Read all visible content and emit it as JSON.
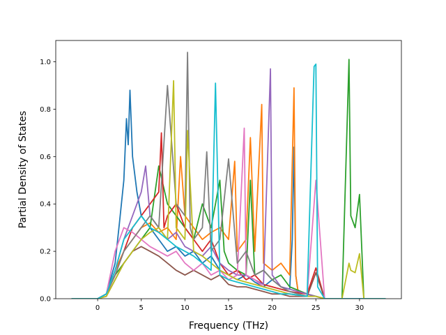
{
  "chart_data": {
    "type": "line",
    "title": "",
    "xlabel": "Frequency (THz)",
    "ylabel": "Partial Density of States",
    "xlim": [
      -4.8,
      34.8
    ],
    "ylim": [
      0,
      1.09
    ],
    "xticks": [
      0,
      5,
      10,
      15,
      20,
      25,
      30
    ],
    "yticks": [
      0.0,
      0.2,
      0.4,
      0.6,
      0.8,
      1.0
    ],
    "xtick_labels": [
      "0",
      "5",
      "10",
      "15",
      "20",
      "25",
      "30"
    ],
    "ytick_labels": [
      "0.0",
      "0.2",
      "0.4",
      "0.6",
      "0.8",
      "1.0"
    ],
    "grid": false,
    "legend": "none",
    "colors": [
      "#1f77b4",
      "#ff7f0e",
      "#2ca02c",
      "#d62728",
      "#9467bd",
      "#8c564b",
      "#e377c2",
      "#7f7f7f",
      "#bcbd22",
      "#17becf"
    ],
    "series": [
      {
        "color": "#1f77b4",
        "x": [
          -3,
          0,
          1,
          2,
          2.5,
          3,
          3.3,
          3.5,
          3.7,
          4,
          4.5,
          5,
          6,
          7,
          8,
          9,
          10,
          11,
          12,
          13,
          14,
          15,
          16,
          17,
          18,
          19,
          20,
          21,
          22,
          22.3,
          22.5,
          22.7,
          23,
          24,
          25,
          26,
          33
        ],
        "y": [
          0,
          0,
          0.02,
          0.15,
          0.32,
          0.5,
          0.76,
          0.65,
          0.88,
          0.6,
          0.45,
          0.35,
          0.3,
          0.25,
          0.2,
          0.22,
          0.18,
          0.2,
          0.15,
          0.18,
          0.12,
          0.1,
          0.08,
          0.1,
          0.07,
          0.05,
          0.08,
          0.05,
          0.04,
          0.25,
          0.64,
          0.1,
          0.02,
          0.01,
          0.01,
          0,
          0
        ]
      },
      {
        "color": "#ff7f0e",
        "x": [
          -3,
          0,
          1,
          2,
          3,
          4,
          5,
          6,
          7,
          8,
          9,
          9.5,
          10,
          11,
          12,
          13,
          14,
          15,
          15.7,
          16,
          17,
          17.5,
          18,
          18.8,
          19,
          20,
          21,
          22,
          22.5,
          22.7,
          23,
          24,
          25,
          26,
          33
        ],
        "y": [
          0,
          0,
          0.02,
          0.12,
          0.2,
          0.25,
          0.3,
          0.32,
          0.28,
          0.3,
          0.25,
          0.6,
          0.35,
          0.3,
          0.25,
          0.28,
          0.3,
          0.25,
          0.58,
          0.2,
          0.25,
          0.68,
          0.2,
          0.82,
          0.15,
          0.12,
          0.15,
          0.1,
          0.89,
          0.1,
          0.02,
          0.01,
          0.01,
          0,
          0
        ]
      },
      {
        "color": "#2ca02c",
        "x": [
          -3,
          0,
          1,
          2,
          3,
          4,
          5,
          6,
          7,
          8,
          9,
          10,
          11,
          12,
          13,
          14,
          14.5,
          15,
          16,
          17,
          17.5,
          18,
          19,
          20,
          21,
          22,
          24,
          25,
          26,
          28,
          28.8,
          29,
          29.5,
          30,
          30.5,
          33
        ],
        "y": [
          0,
          0,
          0.02,
          0.1,
          0.15,
          0.2,
          0.25,
          0.3,
          0.56,
          0.4,
          0.35,
          0.3,
          0.25,
          0.4,
          0.3,
          0.5,
          0.2,
          0.15,
          0.12,
          0.1,
          0.5,
          0.1,
          0.12,
          0.08,
          0.1,
          0.05,
          0.02,
          0.01,
          0,
          0,
          1.01,
          0.35,
          0.3,
          0.44,
          0,
          0
        ]
      },
      {
        "color": "#d62728",
        "x": [
          -3,
          0,
          1,
          2,
          3,
          4,
          5,
          6,
          7,
          7.3,
          7.6,
          8,
          9,
          10,
          11,
          12,
          13,
          14,
          15,
          16,
          17,
          18,
          19,
          20,
          21,
          22,
          24,
          25,
          26,
          33
        ],
        "y": [
          0,
          0,
          0.02,
          0.1,
          0.2,
          0.3,
          0.35,
          0.4,
          0.45,
          0.7,
          0.3,
          0.35,
          0.4,
          0.3,
          0.25,
          0.2,
          0.25,
          0.15,
          0.1,
          0.12,
          0.08,
          0.1,
          0.06,
          0.05,
          0.04,
          0.03,
          0.02,
          0.13,
          0,
          0
        ]
      },
      {
        "color": "#9467bd",
        "x": [
          -3,
          0,
          1,
          2,
          3,
          4,
          5,
          5.5,
          6,
          7,
          8,
          9,
          10,
          11,
          12,
          13,
          14,
          15,
          16,
          17,
          18,
          19,
          19.8,
          20,
          21,
          22,
          24,
          25,
          26,
          33
        ],
        "y": [
          0,
          0,
          0.02,
          0.12,
          0.25,
          0.35,
          0.45,
          0.56,
          0.35,
          0.3,
          0.25,
          0.28,
          0.22,
          0.2,
          0.18,
          0.22,
          0.15,
          0.12,
          0.1,
          0.1,
          0.08,
          0.06,
          0.97,
          0.1,
          0.05,
          0.04,
          0.02,
          0.01,
          0,
          0
        ]
      },
      {
        "color": "#8c564b",
        "x": [
          -3,
          0,
          1,
          2,
          3,
          4,
          5,
          6,
          7,
          8,
          9,
          10,
          11,
          12,
          13,
          14,
          15,
          16,
          17,
          18,
          19,
          20,
          21,
          22,
          24,
          25,
          26,
          33
        ],
        "y": [
          0,
          0,
          0.01,
          0.08,
          0.15,
          0.2,
          0.22,
          0.2,
          0.18,
          0.15,
          0.12,
          0.1,
          0.12,
          0.1,
          0.08,
          0.1,
          0.06,
          0.05,
          0.05,
          0.04,
          0.03,
          0.02,
          0.02,
          0.01,
          0.01,
          0.11,
          0,
          0
        ]
      },
      {
        "color": "#e377c2",
        "x": [
          -3,
          0,
          1,
          2,
          3,
          4,
          5,
          6,
          7,
          8,
          9,
          10,
          11,
          12,
          13,
          14,
          15,
          16,
          16.8,
          17,
          18,
          19,
          20,
          21,
          22,
          24,
          25,
          26,
          33
        ],
        "y": [
          0,
          0,
          0.02,
          0.2,
          0.3,
          0.28,
          0.25,
          0.22,
          0.2,
          0.18,
          0.2,
          0.15,
          0.12,
          0.15,
          0.1,
          0.12,
          0.08,
          0.1,
          0.72,
          0.1,
          0.08,
          0.05,
          0.04,
          0.03,
          0.02,
          0.01,
          0.5,
          0,
          0
        ]
      },
      {
        "color": "#7f7f7f",
        "x": [
          -3,
          0,
          1,
          2,
          3,
          4,
          5,
          6,
          7,
          8,
          9,
          10,
          10.3,
          10.6,
          11,
          12,
          12.5,
          13,
          14,
          15,
          16,
          17,
          18,
          19,
          20,
          21,
          22,
          24,
          25,
          26,
          33
        ],
        "y": [
          0,
          0,
          0.02,
          0.1,
          0.2,
          0.25,
          0.3,
          0.35,
          0.3,
          0.9,
          0.4,
          0.35,
          1.04,
          0.3,
          0.25,
          0.3,
          0.62,
          0.2,
          0.25,
          0.59,
          0.15,
          0.2,
          0.1,
          0.12,
          0.08,
          0.05,
          0.03,
          0.01,
          0.01,
          0,
          0
        ]
      },
      {
        "color": "#bcbd22",
        "x": [
          -3,
          0,
          1,
          2,
          3,
          4,
          5,
          6,
          7,
          8,
          8.7,
          9,
          10,
          10.3,
          11,
          12,
          13,
          14,
          15,
          16,
          17,
          18,
          19,
          20,
          21,
          22,
          24,
          25,
          26,
          28,
          28.8,
          29,
          29.5,
          30,
          30.5,
          33
        ],
        "y": [
          0,
          0,
          0.01,
          0.08,
          0.15,
          0.2,
          0.25,
          0.28,
          0.3,
          0.25,
          0.92,
          0.3,
          0.25,
          0.71,
          0.2,
          0.18,
          0.15,
          0.12,
          0.1,
          0.08,
          0.07,
          0.06,
          0.05,
          0.04,
          0.03,
          0.02,
          0.01,
          0.01,
          0,
          0,
          0.15,
          0.12,
          0.11,
          0.19,
          0,
          0
        ]
      },
      {
        "color": "#17becf",
        "x": [
          -3,
          0,
          1,
          2,
          3,
          4,
          5,
          6,
          7,
          8,
          9,
          10,
          11,
          12,
          13,
          13.5,
          14,
          15,
          16,
          17,
          18,
          19,
          20,
          21,
          22,
          24,
          24.8,
          25,
          25.2,
          26,
          33
        ],
        "y": [
          0,
          0,
          0.02,
          0.12,
          0.25,
          0.3,
          0.35,
          0.3,
          0.28,
          0.25,
          0.22,
          0.2,
          0.18,
          0.15,
          0.12,
          0.91,
          0.1,
          0.08,
          0.07,
          0.06,
          0.05,
          0.04,
          0.03,
          0.02,
          0.02,
          0.01,
          0.98,
          0.99,
          0.05,
          0,
          0
        ]
      }
    ]
  }
}
